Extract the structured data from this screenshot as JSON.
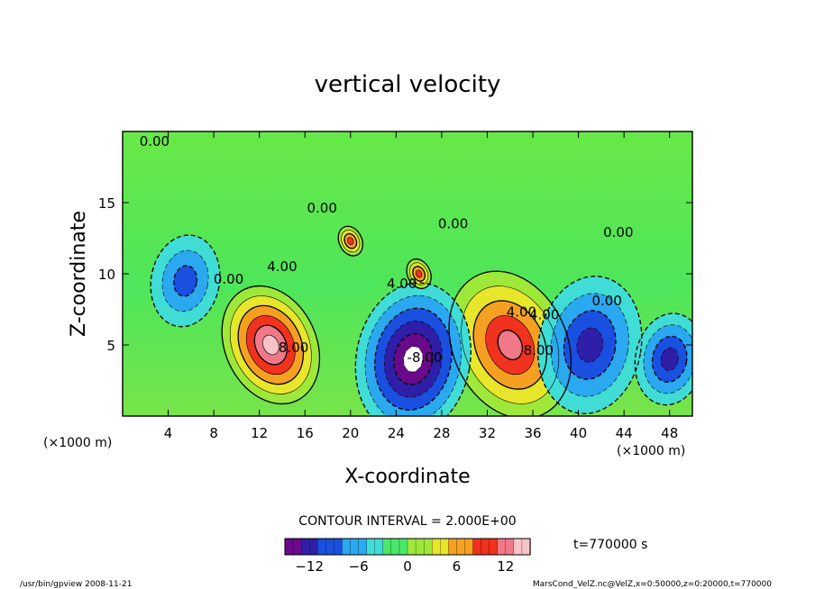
{
  "chart_data": {
    "type": "heatmap",
    "title": "vertical velocity",
    "xlabel": "X-coordinate",
    "ylabel": "Z-coordinate",
    "x_unit": "(×1000 m)",
    "y_unit": "(×1000 m)",
    "xlim": [
      0,
      50
    ],
    "ylim": [
      0,
      20
    ],
    "x_ticks": [
      4,
      8,
      12,
      16,
      20,
      24,
      28,
      32,
      36,
      40,
      44,
      48
    ],
    "y_ticks": [
      5,
      10,
      15
    ],
    "contour_interval_text": "CONTOUR INTERVAL = 2.000E+00",
    "time_text": "t=770000 s",
    "colorbar": {
      "range": [
        -15,
        15
      ],
      "ticks": [
        -12,
        -6,
        0,
        6,
        12
      ],
      "colors": [
        "#6a0a8a",
        "#2f1ea8",
        "#1a50e0",
        "#2aa8f0",
        "#40dcd6",
        "#48e868",
        "#9ee83a",
        "#e8e62a",
        "#f5a020",
        "#f0321e",
        "#f07888",
        "#f8c4c8"
      ]
    },
    "contour_labels": [
      "0.00",
      "0.00",
      "0.00",
      "0.00",
      "0.00",
      "0.00",
      "4.00",
      "8.00",
      "4.00",
      "4.00",
      "8.00",
      "4.00",
      "-8.00",
      "-8.00"
    ],
    "features": [
      {
        "x": 13,
        "z": 5,
        "w": 8,
        "sign": "positive",
        "peak": 14
      },
      {
        "x": 34,
        "z": 5,
        "w": 10,
        "sign": "positive",
        "peak": 12
      },
      {
        "x": 25.5,
        "z": 4,
        "w": 10,
        "sign": "negative",
        "peak": -16
      },
      {
        "x": 5.5,
        "z": 9.5,
        "w": 6,
        "sign": "negative",
        "peak": -8
      },
      {
        "x": 41,
        "z": 5,
        "w": 9,
        "sign": "negative",
        "peak": -10
      },
      {
        "x": 48,
        "z": 4,
        "w": 6,
        "sign": "negative",
        "peak": -9
      },
      {
        "x": 20,
        "z": 12.3,
        "w": 2,
        "sign": "positive",
        "peak": 9
      },
      {
        "x": 26,
        "z": 10,
        "w": 2,
        "sign": "positive",
        "peak": 10
      }
    ]
  },
  "footer": {
    "left": "/usr/bin/gpview   2008-11-21",
    "right": "MarsCond_VelZ.nc@VelZ,x=0:50000,z=0:20000,t=770000"
  }
}
